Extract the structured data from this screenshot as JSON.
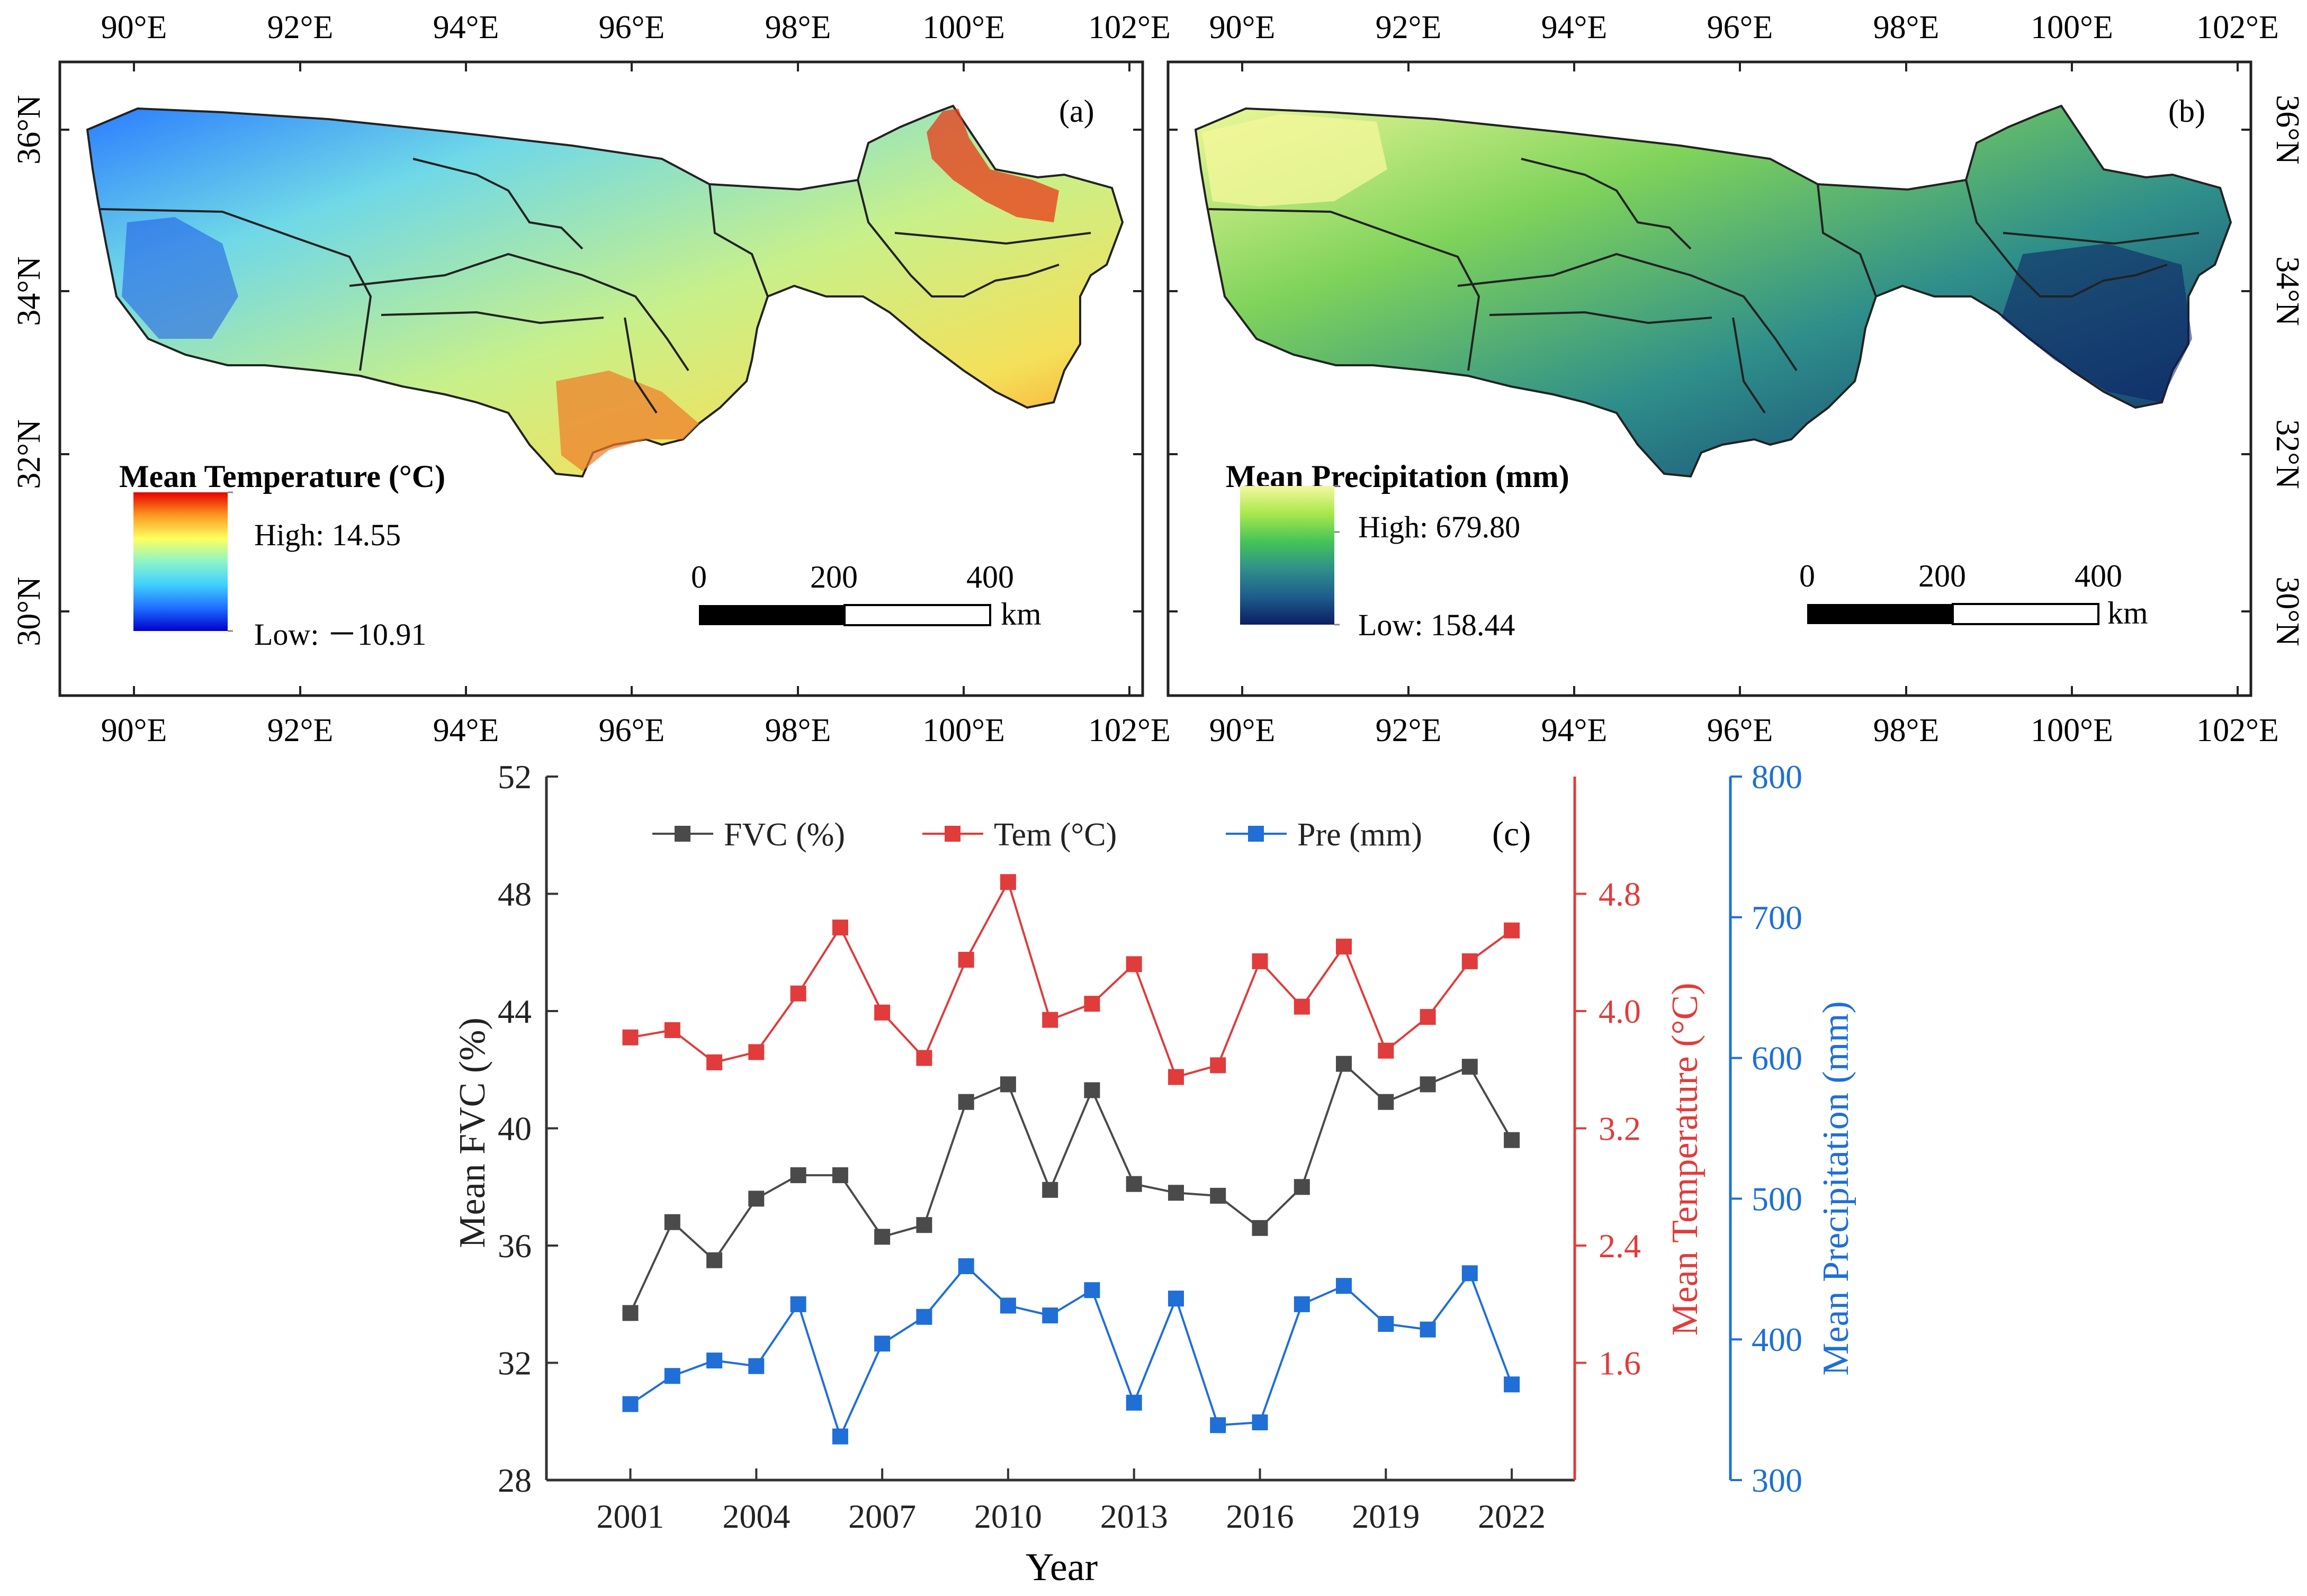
{
  "panels": [
    {
      "id": "a",
      "label": "(a)",
      "legend_title": "Mean Temperature (°C)",
      "high_label": "High: 14.55",
      "low_label": "Low: －10.91",
      "lon_ticks": [
        "90°E",
        "92°E",
        "94°E",
        "96°E",
        "98°E",
        "100°E",
        "102°E"
      ],
      "lat_ticks": [
        "36°N",
        "34°N",
        "32°N",
        "30°N"
      ],
      "scale_ticks": [
        "0",
        "200",
        "400"
      ],
      "scale_unit": "km",
      "ramp_colors": [
        "#0000cc",
        "#1f6fff",
        "#3fd0ff",
        "#8cf5c8",
        "#ffff60",
        "#ff9a20",
        "#e60000"
      ],
      "region_fill": "#7fdcdf"
    },
    {
      "id": "b",
      "label": "(b)",
      "legend_title": "Mean Precipitation (mm)",
      "high_label": "High: 679.80",
      "low_label": "Low: 158.44",
      "lon_ticks": [
        "90°E",
        "92°E",
        "94°E",
        "96°E",
        "98°E",
        "100°E",
        "102°E"
      ],
      "lat_ticks": [
        "36°N",
        "34°N",
        "32°N",
        "30°N"
      ],
      "scale_ticks": [
        "0",
        "200",
        "400"
      ],
      "scale_unit": "km",
      "ramp_colors": [
        "#0b1e63",
        "#1d5d8c",
        "#2f8f8a",
        "#45c45a",
        "#a8e84a",
        "#f4f8a0"
      ],
      "region_fill": "#3fa374"
    }
  ],
  "chart_data": {
    "type": "line",
    "label": "(c)",
    "xlabel": "Year",
    "x": [
      2001,
      2002,
      2003,
      2004,
      2005,
      2006,
      2007,
      2008,
      2009,
      2010,
      2011,
      2012,
      2013,
      2014,
      2015,
      2016,
      2017,
      2018,
      2019,
      2020,
      2021,
      2022
    ],
    "xticks": [
      2001,
      2004,
      2007,
      2010,
      2013,
      2016,
      2019,
      2022
    ],
    "xlim": [
      1999,
      2023.5
    ],
    "series": [
      {
        "name": "FVC (%)",
        "axis": "left",
        "color": "#4a4a4a",
        "values": [
          33.7,
          36.8,
          35.5,
          37.6,
          38.4,
          38.4,
          36.3,
          36.7,
          40.9,
          41.5,
          37.9,
          41.3,
          38.1,
          37.8,
          37.7,
          36.6,
          38.0,
          42.2,
          40.9,
          41.5,
          42.1,
          39.6
        ]
      },
      {
        "name": "Tem (°C)",
        "axis": "right1",
        "color": "#e03c3c",
        "values": [
          3.82,
          3.87,
          3.65,
          3.72,
          4.12,
          4.57,
          3.99,
          3.68,
          4.35,
          4.88,
          3.94,
          4.05,
          4.32,
          3.55,
          3.63,
          4.34,
          4.03,
          4.44,
          3.73,
          3.96,
          4.34,
          4.55
        ]
      },
      {
        "name": "Pre (mm)",
        "axis": "right2",
        "color": "#1f6fd6",
        "values": [
          354,
          374,
          385,
          381,
          425,
          331,
          397,
          416,
          452,
          424,
          417,
          435,
          355,
          429,
          339,
          341,
          425,
          438,
          411,
          407,
          447,
          368
        ]
      }
    ],
    "axes": {
      "left": {
        "label": "Mean FVC (%)",
        "ylim": [
          28,
          52
        ],
        "ticks": [
          28,
          32,
          36,
          40,
          44,
          48,
          52
        ],
        "color": "#333333"
      },
      "right1": {
        "label": "Mean Temperature (°C)",
        "ylim": [
          0.8,
          5.6
        ],
        "ticks": [
          "1.6",
          "2.4",
          "3.2",
          "4.0",
          "4.8"
        ],
        "color": "#e03c3c"
      },
      "right2": {
        "label": "Mean Precipitation (mm)",
        "ylim": [
          300,
          800
        ],
        "ticks": [
          300,
          400,
          500,
          600,
          700,
          800
        ],
        "color": "#1f6fd6"
      }
    },
    "legend": "top"
  }
}
